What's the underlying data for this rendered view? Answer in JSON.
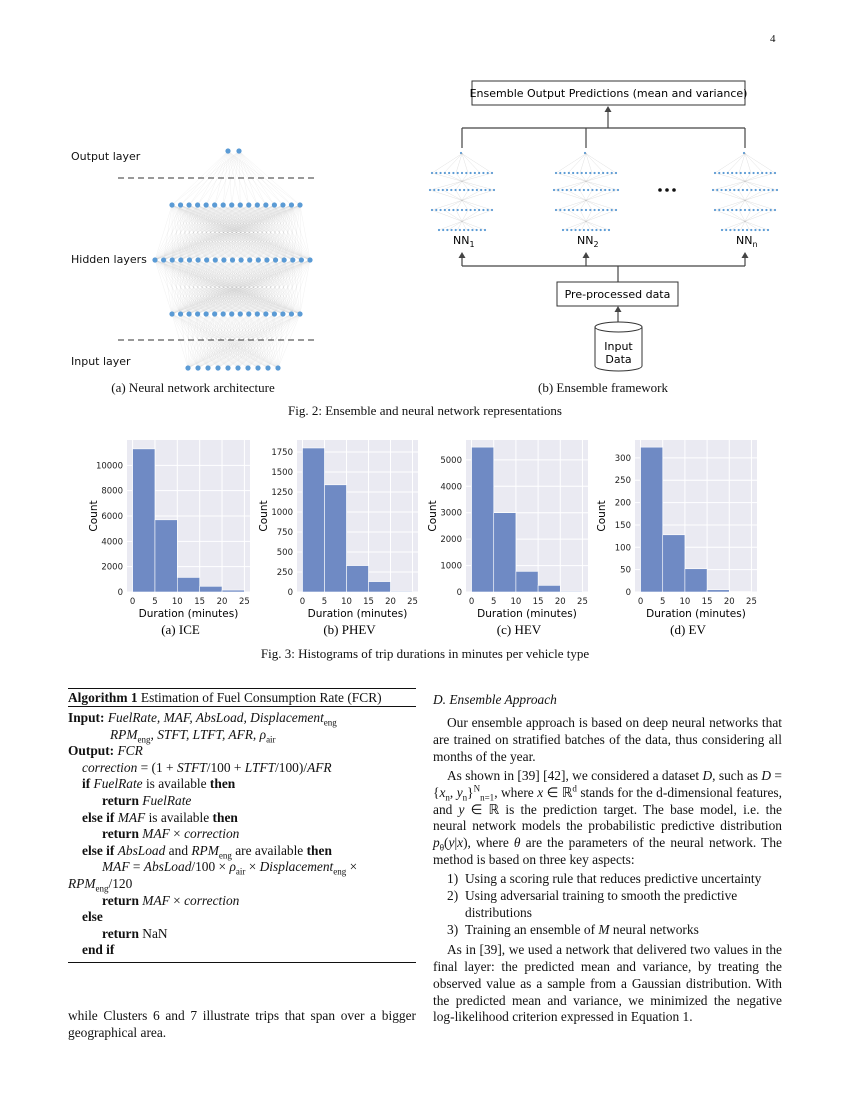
{
  "page_number": "4",
  "figure2": {
    "output_layer": "Output layer",
    "hidden_layers": "Hidden layers",
    "input_layer": "Input layer",
    "ensemble_output": "Ensemble Output Predictions (mean and variance)",
    "networks": [
      {
        "label": "NN",
        "sub": "1"
      },
      {
        "label": "NN",
        "sub": "2"
      },
      {
        "label": "NN",
        "sub": "n"
      }
    ],
    "preprocessed": "Pre-processed data",
    "input_data": [
      "Input",
      "Data"
    ],
    "subcaptions": [
      "(a) Neural network architecture",
      "(b) Ensemble framework"
    ],
    "caption": "Fig. 2: Ensemble and neural network representations"
  },
  "chart_data": [
    {
      "type": "histogram",
      "caption": "(a) ICE",
      "xlabel": "Duration (minutes)",
      "ylabel": "Count",
      "color": "#6f8ac4",
      "bins": [
        0,
        5,
        10,
        15,
        20,
        25
      ],
      "values": [
        11300,
        5700,
        1150,
        450,
        150
      ],
      "xlim": [
        -1.25,
        26.25
      ],
      "xticks": [
        0,
        5,
        10,
        15,
        20,
        25
      ],
      "ylim": [
        0,
        12000
      ],
      "yticks": [
        0,
        2000,
        4000,
        6000,
        8000,
        10000
      ],
      "grid": true
    },
    {
      "type": "histogram",
      "caption": "(b) PHEV",
      "xlabel": "Duration (minutes)",
      "ylabel": "Count",
      "color": "#6f8ac4",
      "bins": [
        0,
        5,
        10,
        15,
        20,
        25
      ],
      "values": [
        1800,
        1340,
        330,
        130,
        10
      ],
      "xlim": [
        -1.25,
        26.25
      ],
      "xticks": [
        0,
        5,
        10,
        15,
        20,
        25
      ],
      "ylim": [
        0,
        1900
      ],
      "yticks": [
        0,
        250,
        500,
        750,
        1000,
        1250,
        1500,
        1750
      ],
      "grid": true
    },
    {
      "type": "histogram",
      "caption": "(c) HEV",
      "xlabel": "Duration (minutes)",
      "ylabel": "Count",
      "color": "#6f8ac4",
      "bins": [
        0,
        5,
        10,
        15,
        20,
        25
      ],
      "values": [
        5480,
        3000,
        780,
        250,
        30
      ],
      "xlim": [
        -1.25,
        26.25
      ],
      "xticks": [
        0,
        5,
        10,
        15,
        20,
        25
      ],
      "ylim": [
        0,
        5750
      ],
      "yticks": [
        0,
        1000,
        2000,
        3000,
        4000,
        5000
      ],
      "grid": true
    },
    {
      "type": "histogram",
      "caption": "(d) EV",
      "xlabel": "Duration (minutes)",
      "ylabel": "Count",
      "color": "#6f8ac4",
      "bins": [
        0,
        5,
        10,
        15,
        20,
        25
      ],
      "values": [
        324,
        128,
        52,
        5,
        1
      ],
      "xlim": [
        -1.25,
        26.25
      ],
      "xticks": [
        0,
        5,
        10,
        15,
        20,
        25
      ],
      "ylim": [
        0,
        340
      ],
      "yticks": [
        0,
        50,
        100,
        150,
        200,
        250,
        300
      ],
      "grid": true
    }
  ],
  "figure3_caption": "Fig. 3: Histograms of trip durations in minutes per vehicle type",
  "algorithm": {
    "label": "Algorithm 1",
    "title": "Estimation of Fuel Consumption Rate (FCR)",
    "lines": [
      [
        {
          "b": "Input: "
        },
        {
          "m": "FuelRate, MAF, AbsLoad, Displacement"
        },
        {
          "sub": "eng"
        }
      ],
      [
        {
          "m": "RPM"
        },
        {
          "sub": "eng"
        },
        {
          "m": ", STFT, LTFT, AFR, ρ"
        },
        {
          "sub": "air"
        }
      ],
      [
        {
          "b": "Output: "
        },
        {
          "m": "FCR"
        }
      ],
      [
        {
          "m": "correction"
        },
        {
          "t": " = (1 + "
        },
        {
          "m": "STFT"
        },
        {
          "t": "/100 + "
        },
        {
          "m": "LTFT"
        },
        {
          "t": "/100)/"
        },
        {
          "m": "AFR"
        }
      ],
      [
        {
          "b": "if "
        },
        {
          "m": "FuelRate"
        },
        {
          "t": " is available "
        },
        {
          "b": "then"
        }
      ],
      [
        {
          "b": "return "
        },
        {
          "m": "FuelRate"
        }
      ],
      [
        {
          "b": "else if "
        },
        {
          "m": "MAF"
        },
        {
          "t": " is available "
        },
        {
          "b": "then"
        }
      ],
      [
        {
          "b": "return "
        },
        {
          "m": "MAF"
        },
        {
          "t": " × "
        },
        {
          "m": "correction"
        }
      ],
      [
        {
          "b": "else if "
        },
        {
          "m": "AbsLoad"
        },
        {
          "t": " and "
        },
        {
          "m": "RPM"
        },
        {
          "sub": "eng"
        },
        {
          "t": " are available "
        },
        {
          "b": "then"
        }
      ],
      [
        {
          "m": "MAF"
        },
        {
          "t": " = "
        },
        {
          "m": "AbsLoad"
        },
        {
          "t": "/100 × "
        },
        {
          "m": "ρ"
        },
        {
          "sub": "air"
        },
        {
          "t": " × "
        },
        {
          "m": "Displacement"
        },
        {
          "sub": "eng"
        },
        {
          "t": " ×"
        }
      ],
      [
        {
          "m": "RPM"
        },
        {
          "sub": "eng"
        },
        {
          "t": "/120"
        }
      ],
      [
        {
          "b": "return "
        },
        {
          "m": "MAF"
        },
        {
          "t": " × "
        },
        {
          "m": "correction"
        }
      ],
      [
        {
          "b": "else"
        }
      ],
      [
        {
          "b": "return "
        },
        {
          "t": "NaN"
        }
      ],
      [
        {
          "b": "end if"
        }
      ]
    ]
  },
  "left_text": [
    {
      "t": "while Clusters 6 and 7 illustrate trips that span over a bigger geographical area."
    }
  ],
  "section": {
    "heading": "D. Ensemble Approach",
    "paragraphs": [
      [
        {
          "t": "Our ensemble approach is based on deep neural networks that are trained on stratified batches of the data, thus considering all months of the year."
        }
      ],
      [
        {
          "t": "As shown in [39] [42], we considered a dataset "
        },
        {
          "m": "D"
        },
        {
          "t": ", such as "
        },
        {
          "m": "D"
        },
        {
          "t": " = {"
        },
        {
          "m": "x"
        },
        {
          "sub": "n"
        },
        {
          "t": ", "
        },
        {
          "m": "y"
        },
        {
          "sub": "n"
        },
        {
          "t": "}"
        },
        {
          "sup": "N"
        },
        {
          "sub": "n=1"
        },
        {
          "t": ", where "
        },
        {
          "m": "x"
        },
        {
          "t": " ∈ ℝ"
        },
        {
          "sup": "d"
        },
        {
          "t": " stands for the d-dimensional features, and "
        },
        {
          "m": "y"
        },
        {
          "t": " ∈ ℝ is the prediction target. The base model, i.e. the neural network models the probabilistic predictive distribution "
        },
        {
          "m": "p"
        },
        {
          "sub": "θ"
        },
        {
          "t": "("
        },
        {
          "m": "y"
        },
        {
          "t": "|"
        },
        {
          "m": "x"
        },
        {
          "t": "), where "
        },
        {
          "m": "θ"
        },
        {
          "t": " are the parameters of the neural network. The method is based on three key aspects:"
        }
      ]
    ],
    "list": [
      {
        "marker": "1)",
        "text": [
          {
            "t": "Using a scoring rule that reduces predictive uncertainty"
          }
        ]
      },
      {
        "marker": "2)",
        "text": [
          {
            "t": "Using adversarial training to smooth the predictive distributions"
          }
        ]
      },
      {
        "marker": "3)",
        "text": [
          {
            "t": "Training an ensemble of "
          },
          {
            "m": "M"
          },
          {
            "t": " neural networks"
          }
        ]
      }
    ],
    "closing": [
      {
        "t": "As in [39], we used a network that delivered two values in the final layer: the predicted mean and variance, by treating the observed value as a sample from a Gaussian distribution. With the predicted mean and variance, we minimized the negative log-likelihood criterion expressed in Equation 1."
      }
    ]
  }
}
